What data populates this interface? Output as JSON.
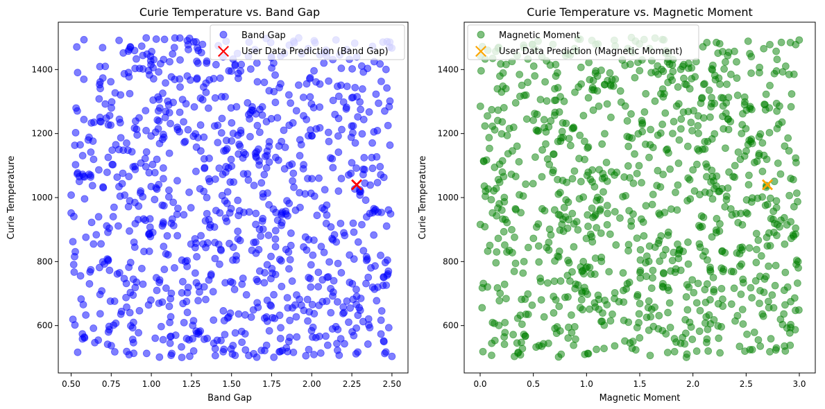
{
  "chart_data": [
    {
      "type": "scatter",
      "title": "Curie Temperature vs. Band Gap",
      "xlabel": "Band Gap",
      "ylabel": "Curie Temperature",
      "xlim": [
        0.42,
        2.6
      ],
      "ylim": [
        452,
        1548
      ],
      "xticks": [
        0.5,
        0.75,
        1.0,
        1.25,
        1.5,
        1.75,
        2.0,
        2.25,
        2.5
      ],
      "xtick_labels": [
        "0.50",
        "0.75",
        "1.00",
        "1.25",
        "1.50",
        "1.75",
        "2.00",
        "2.25",
        "2.50"
      ],
      "yticks": [
        600,
        800,
        1000,
        1200,
        1400
      ],
      "ytick_labels": [
        "600",
        "800",
        "1000",
        "1200",
        "1400"
      ],
      "grid": false,
      "legend_position": "upper-right",
      "series": [
        {
          "name": "Band Gap",
          "marker": "circle",
          "color": "#0000ff",
          "alpha": 0.5,
          "count": 1000,
          "x_range": [
            0.5,
            2.5
          ],
          "y_range": [
            500,
            1500
          ],
          "distribution": "uniform-random"
        },
        {
          "name": "User Data Prediction (Band Gap)",
          "marker": "x",
          "color": "#ff0000",
          "points": [
            {
              "x": 2.28,
              "y": 1040
            }
          ]
        }
      ]
    },
    {
      "type": "scatter",
      "title": "Curie Temperature vs. Magnetic Moment",
      "xlabel": "Magnetic Moment",
      "ylabel": "Curie Temperature",
      "xlim": [
        -0.15,
        3.15
      ],
      "ylim": [
        452,
        1548
      ],
      "xticks": [
        0.0,
        0.5,
        1.0,
        1.5,
        2.0,
        2.5,
        3.0
      ],
      "xtick_labels": [
        "0.0",
        "0.5",
        "1.0",
        "1.5",
        "2.0",
        "2.5",
        "3.0"
      ],
      "yticks": [
        600,
        800,
        1000,
        1200,
        1400
      ],
      "ytick_labels": [
        "600",
        "800",
        "1000",
        "1200",
        "1400"
      ],
      "grid": false,
      "legend_position": "upper-left",
      "series": [
        {
          "name": "Magnetic Moment",
          "marker": "circle",
          "color": "#008000",
          "alpha": 0.5,
          "count": 1000,
          "x_range": [
            0.0,
            3.0
          ],
          "y_range": [
            500,
            1500
          ],
          "distribution": "uniform-random"
        },
        {
          "name": "User Data Prediction (Magnetic Moment)",
          "marker": "x",
          "color": "#ffa500",
          "points": [
            {
              "x": 2.7,
              "y": 1040
            }
          ]
        }
      ]
    }
  ]
}
